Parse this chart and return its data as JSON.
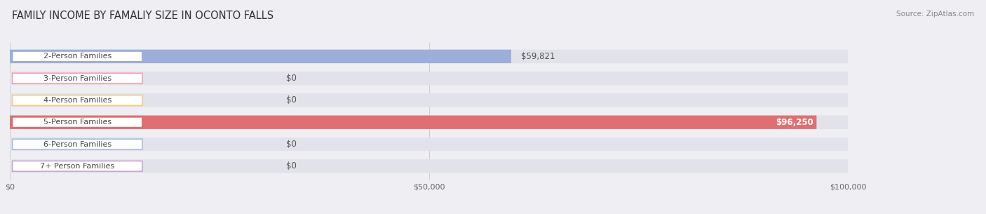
{
  "title": "FAMILY INCOME BY FAMALIY SIZE IN OCONTO FALLS",
  "source": "Source: ZipAtlas.com",
  "categories": [
    "2-Person Families",
    "3-Person Families",
    "4-Person Families",
    "5-Person Families",
    "6-Person Families",
    "7+ Person Families"
  ],
  "values": [
    59821,
    0,
    0,
    96250,
    0,
    0
  ],
  "bar_colors": [
    "#9DAED8",
    "#F4A0B0",
    "#F5C98C",
    "#E07070",
    "#A8BDE0",
    "#C4A8D4"
  ],
  "label_border_colors": [
    "#9DAED8",
    "#F4A0B0",
    "#F5C98C",
    "#E07070",
    "#A8BDE0",
    "#C4A8D4"
  ],
  "value_labels": [
    "$59,821",
    "$0",
    "$0",
    "$96,250",
    "$0",
    "$0"
  ],
  "value_label_inside": [
    false,
    false,
    false,
    true,
    false,
    false
  ],
  "xmax": 100000,
  "xticks": [
    0,
    50000,
    100000
  ],
  "xtick_labels": [
    "$0",
    "$50,000",
    "$100,000"
  ],
  "background_color": "#EEEEF3",
  "bar_background_color": "#E2E2EA",
  "bar_height": 0.62,
  "title_fontsize": 10.5,
  "label_fontsize": 8,
  "value_fontsize": 8.5
}
